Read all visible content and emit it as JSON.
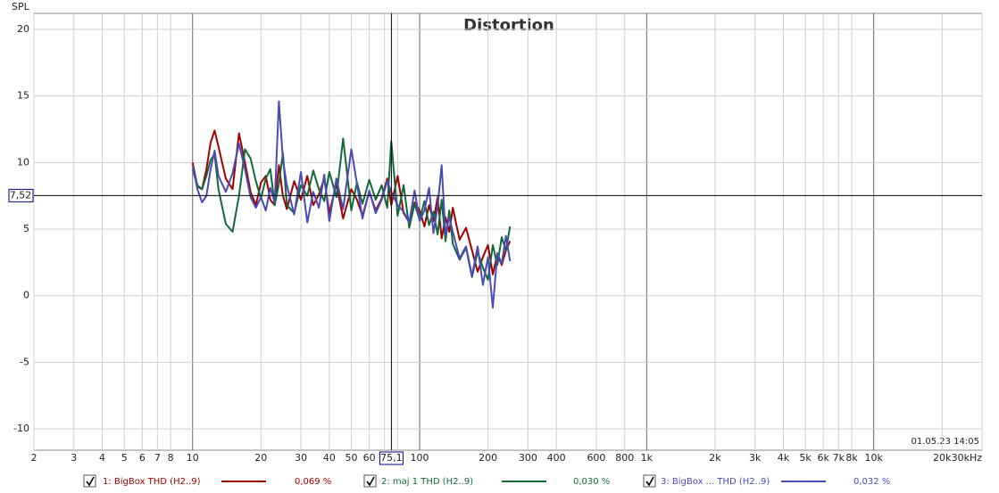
{
  "chart_data": {
    "type": "line",
    "title": "Distortion",
    "ylabel": "SPL",
    "timestamp": "01.05.23 14:05",
    "xscale": "log",
    "grid": true,
    "xlim": [
      2,
      30000
    ],
    "ylim": [
      -11.6,
      21.2
    ],
    "xticks": [
      2,
      3,
      4,
      5,
      6,
      7,
      8,
      10,
      20,
      30,
      40,
      50,
      60,
      70,
      80,
      100,
      200,
      300,
      400,
      600,
      800,
      {
        "value": 1000,
        "label": "1k"
      },
      {
        "value": 2000,
        "label": "2k"
      },
      {
        "value": 3000,
        "label": "3k"
      },
      {
        "value": 4000,
        "label": "4k"
      },
      {
        "value": 5000,
        "label": "5k"
      },
      {
        "value": 6000,
        "label": "6k"
      },
      {
        "value": 7000,
        "label": "7k"
      },
      {
        "value": 8000,
        "label": "8k"
      },
      {
        "value": 10000,
        "label": "10k"
      },
      {
        "value": 20000,
        "label": "20k"
      },
      {
        "value": 30000,
        "label": "30kHz"
      }
    ],
    "yticks": [
      20,
      15,
      10,
      5,
      0,
      -5,
      -10
    ],
    "cursor": {
      "x": {
        "value": 75.1,
        "label": "75,1"
      },
      "y": {
        "value": 7.52,
        "label": "7,52"
      }
    },
    "x": [
      10,
      10.5,
      11,
      11.5,
      12,
      12.5,
      13,
      14,
      15,
      16,
      17,
      18,
      19,
      20,
      21,
      22,
      23,
      24,
      25,
      26,
      28,
      30,
      32,
      34,
      36,
      38,
      40,
      43,
      46,
      50,
      53,
      56,
      60,
      64,
      68,
      72,
      75,
      80,
      85,
      90,
      95,
      100,
      105,
      110,
      115,
      120,
      125,
      130,
      135,
      140,
      150,
      160,
      170,
      180,
      190,
      200,
      210,
      220,
      230,
      240,
      250
    ],
    "series": [
      {
        "name": "1: BigBox THD (H2..9)",
        "color": "#a00000",
        "readout": {
          "value": 0.069,
          "label": "0,069 %"
        },
        "values": [
          10,
          8.2,
          8,
          9.5,
          11.5,
          12.4,
          11.2,
          8.8,
          8,
          12.2,
          10,
          7.8,
          6.8,
          8.5,
          9,
          7.2,
          6.8,
          9.8,
          7.5,
          6.5,
          8.6,
          7.2,
          9,
          6.8,
          7.6,
          8.8,
          6.2,
          8.4,
          5.8,
          8,
          7.2,
          6,
          7.8,
          6.4,
          7.3,
          8.8,
          6.8,
          9,
          6.2,
          5.5,
          7,
          6.4,
          5.2,
          6.8,
          5.6,
          7.4,
          4.3,
          5.9,
          4.8,
          6.6,
          4.2,
          5.1,
          3.4,
          1.8,
          2.9,
          3.8,
          1.6,
          3.1,
          2.3,
          3.4,
          4.1
        ]
      },
      {
        "name": "2: maj 1 THD (H2..9)",
        "color": "#12693a",
        "readout": {
          "value": 0.03,
          "label": "0,030 %"
        },
        "values": [
          9.5,
          8.3,
          8,
          9,
          10.2,
          10.6,
          8,
          5.4,
          4.8,
          7.5,
          11,
          10.3,
          8.6,
          7.3,
          8.8,
          9.5,
          6.8,
          8.4,
          10.7,
          6.8,
          6.2,
          8.3,
          7.5,
          9.4,
          8,
          7.1,
          9.3,
          7.4,
          11.8,
          6.4,
          8.5,
          6.9,
          8.7,
          7.2,
          8.3,
          6.6,
          11.6,
          6,
          8.3,
          5.1,
          6.9,
          5.7,
          7.1,
          5.3,
          6.3,
          4.6,
          7.2,
          4.1,
          6.4,
          3.9,
          2.7,
          3.6,
          1.4,
          3.3,
          2.1,
          1.2,
          3.8,
          2.3,
          4.4,
          3.4,
          5.2
        ]
      },
      {
        "name": "3: BigBox ... THD (H2..9)",
        "color": "#4b4bb8",
        "readout": {
          "value": 0.032,
          "label": "0,032 %"
        },
        "values": [
          9.8,
          8,
          7,
          7.5,
          9.5,
          10.9,
          9,
          7.8,
          9.2,
          11.4,
          9.5,
          7.4,
          6.6,
          7.4,
          6.4,
          8.1,
          7,
          14.6,
          10.2,
          8.3,
          6.1,
          9.3,
          5.5,
          7.8,
          6.6,
          9.1,
          5.6,
          8.8,
          6.5,
          11,
          8.4,
          5.8,
          7.9,
          6.2,
          7.2,
          8.6,
          7.8,
          6.8,
          6.3,
          5.5,
          7.9,
          5.6,
          6.4,
          8.1,
          4.7,
          6.7,
          9.8,
          4.6,
          5.9,
          4.8,
          2.8,
          3.7,
          1.5,
          3.7,
          0.8,
          2.9,
          -0.9,
          3.2,
          2.4,
          4.5,
          2.6
        ]
      }
    ]
  }
}
